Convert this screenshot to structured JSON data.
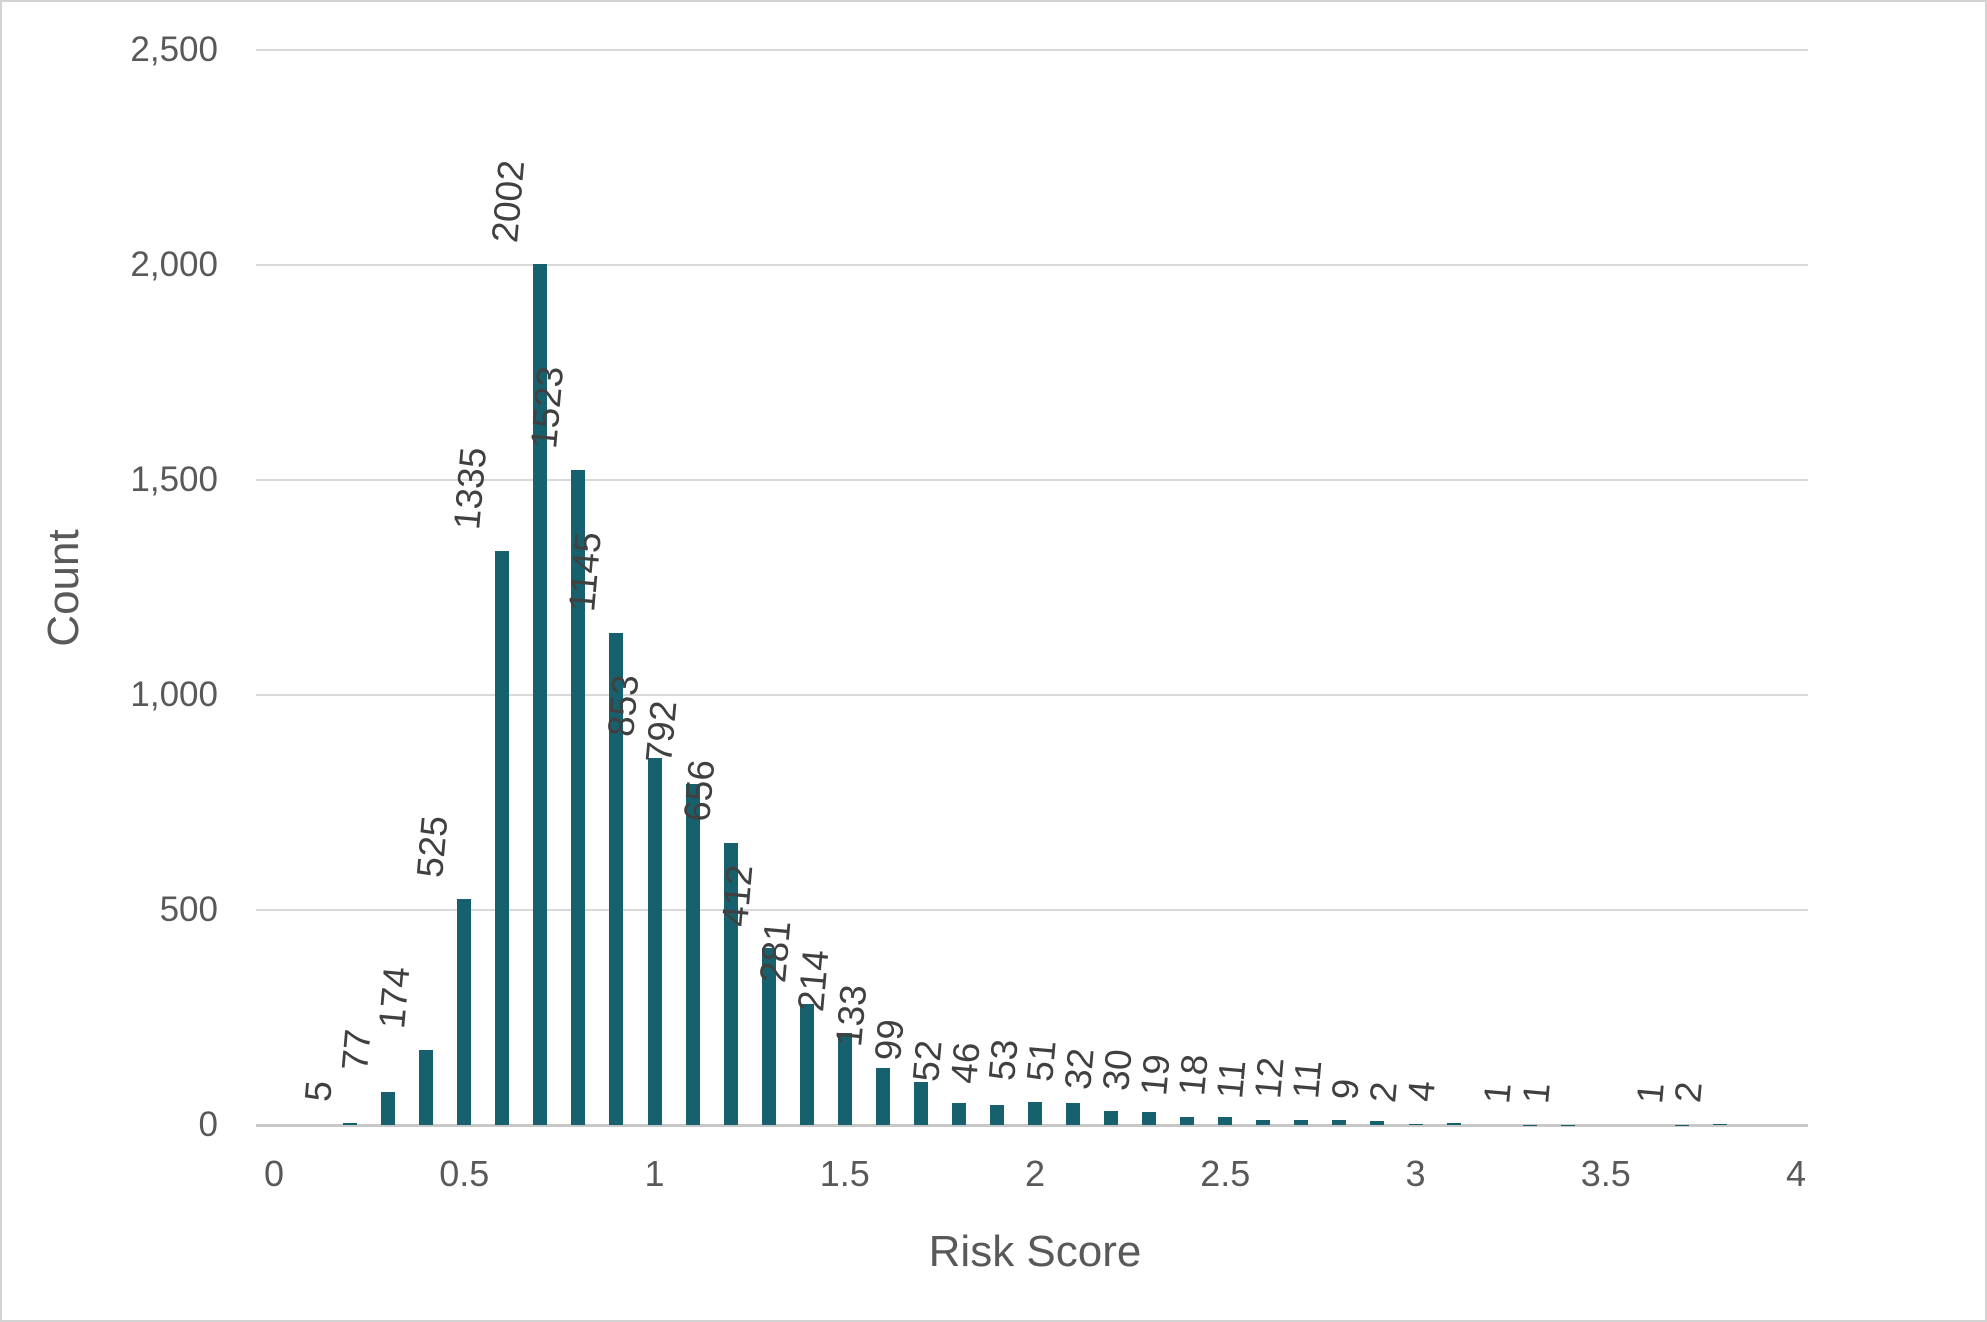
{
  "chart_data": {
    "type": "bar",
    "title": "",
    "xlabel": "Risk Score",
    "ylabel": "Count",
    "xlim": [
      0,
      4
    ],
    "ylim": [
      0,
      2500
    ],
    "grid": "horizontal",
    "legend": "none",
    "xticks": [
      {
        "value": 0,
        "label": "0"
      },
      {
        "value": 0.5,
        "label": "0.5"
      },
      {
        "value": 1,
        "label": "1"
      },
      {
        "value": 1.5,
        "label": "1.5"
      },
      {
        "value": 2,
        "label": "2"
      },
      {
        "value": 2.5,
        "label": "2.5"
      },
      {
        "value": 3,
        "label": "3"
      },
      {
        "value": 3.5,
        "label": "3.5"
      },
      {
        "value": 4,
        "label": "4"
      }
    ],
    "yticks": [
      {
        "value": 0,
        "label": "0"
      },
      {
        "value": 500,
        "label": "500"
      },
      {
        "value": 1000,
        "label": "1,000"
      },
      {
        "value": 1500,
        "label": "1,500"
      },
      {
        "value": 2000,
        "label": "2,000"
      },
      {
        "value": 2500,
        "label": "2,500"
      }
    ],
    "points": [
      {
        "x": 0.2,
        "count": 5,
        "label": "5"
      },
      {
        "x": 0.3,
        "count": 77,
        "label": "77"
      },
      {
        "x": 0.4,
        "count": 174,
        "label": "174"
      },
      {
        "x": 0.5,
        "count": 525,
        "label": "525"
      },
      {
        "x": 0.6,
        "count": 1335,
        "label": "1335"
      },
      {
        "x": 0.7,
        "count": 2002,
        "label": "2002"
      },
      {
        "x": 0.8,
        "count": 1523,
        "label": "1523"
      },
      {
        "x": 0.9,
        "count": 1145,
        "label": "1145"
      },
      {
        "x": 1.0,
        "count": 853,
        "label": "853"
      },
      {
        "x": 1.1,
        "count": 792,
        "label": "792"
      },
      {
        "x": 1.2,
        "count": 656,
        "label": "656"
      },
      {
        "x": 1.3,
        "count": 412,
        "label": "412"
      },
      {
        "x": 1.4,
        "count": 281,
        "label": "281"
      },
      {
        "x": 1.5,
        "count": 214,
        "label": "214"
      },
      {
        "x": 1.6,
        "count": 133,
        "label": "133"
      },
      {
        "x": 1.7,
        "count": 99,
        "label": "99"
      },
      {
        "x": 1.8,
        "count": 52,
        "label": "52"
      },
      {
        "x": 1.9,
        "count": 46,
        "label": "46"
      },
      {
        "x": 2.0,
        "count": 53,
        "label": "53"
      },
      {
        "x": 2.1,
        "count": 51,
        "label": "51"
      },
      {
        "x": 2.2,
        "count": 32,
        "label": "32"
      },
      {
        "x": 2.3,
        "count": 30,
        "label": "30"
      },
      {
        "x": 2.4,
        "count": 19,
        "label": "19"
      },
      {
        "x": 2.5,
        "count": 18,
        "label": "18"
      },
      {
        "x": 2.6,
        "count": 11,
        "label": "11"
      },
      {
        "x": 2.7,
        "count": 12,
        "label": "12"
      },
      {
        "x": 2.8,
        "count": 11,
        "label": "11"
      },
      {
        "x": 2.9,
        "count": 9,
        "label": "9"
      },
      {
        "x": 3.0,
        "count": 2,
        "label": "2"
      },
      {
        "x": 3.1,
        "count": 4,
        "label": "4"
      },
      {
        "x": 3.3,
        "count": 1,
        "label": "1"
      },
      {
        "x": 3.4,
        "count": 1,
        "label": "1"
      },
      {
        "x": 3.7,
        "count": 1,
        "label": "1"
      },
      {
        "x": 3.8,
        "count": 2,
        "label": "2"
      }
    ],
    "colors": {
      "bar": "#17616f",
      "gridline": "#d9d9d9",
      "axis_line": "#c8c8c8",
      "tick_text": "#595959",
      "axis_title_text": "#595959",
      "data_label_text": "#404040",
      "background": "#ffffff",
      "border": "#d2d2d2"
    }
  }
}
